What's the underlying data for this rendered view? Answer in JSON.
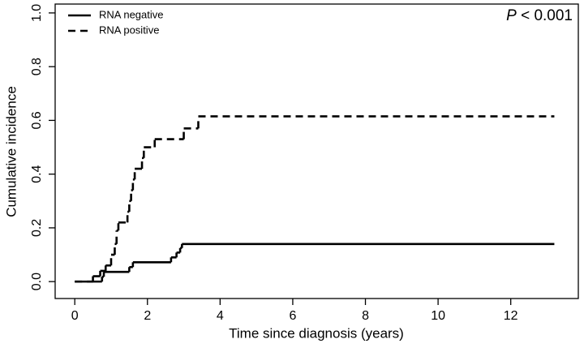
{
  "chart_data": {
    "type": "line",
    "step": "post",
    "xlabel": "Time since diagnosis (years)",
    "ylabel": "Cumulative incidence",
    "annotation_italic": "P",
    "annotation": "< 0.001",
    "xlim": [
      -0.54,
      13.86
    ],
    "xticks": [
      0,
      2,
      4,
      6,
      8,
      10,
      12
    ],
    "ylim": [
      -0.063,
      1.033
    ],
    "yticks": [
      {
        "value": 0,
        "label": "0.0"
      },
      {
        "value": 0.2,
        "label": "0.2"
      },
      {
        "value": 0.4,
        "label": "0.4"
      },
      {
        "value": 0.6,
        "label": "0.6"
      },
      {
        "value": 0.8,
        "label": "0.8"
      },
      {
        "value": 1,
        "label": "1.0"
      }
    ],
    "legend": "top-left",
    "series": [
      {
        "name": "RNA negative",
        "color": "#000000",
        "dash": "solid",
        "x": [
          0,
          0.75,
          0.8,
          1.5,
          1.6,
          2.65,
          2.8,
          2.9,
          2.95,
          13.2
        ],
        "values": [
          0,
          0.018,
          0.036,
          0.054,
          0.072,
          0.09,
          0.108,
          0.125,
          0.14,
          0.14
        ]
      },
      {
        "name": "RNA positive",
        "color": "#000000",
        "dash": "dashed",
        "x": [
          0,
          0.5,
          0.7,
          0.85,
          1.0,
          1.1,
          1.15,
          1.2,
          1.45,
          1.5,
          1.55,
          1.6,
          1.65,
          1.85,
          1.9,
          2.2,
          3.0,
          3.4,
          13.2
        ],
        "values": [
          0,
          0.02,
          0.04,
          0.06,
          0.1,
          0.14,
          0.19,
          0.22,
          0.26,
          0.3,
          0.34,
          0.38,
          0.42,
          0.46,
          0.5,
          0.53,
          0.57,
          0.615,
          0.615
        ]
      }
    ]
  }
}
